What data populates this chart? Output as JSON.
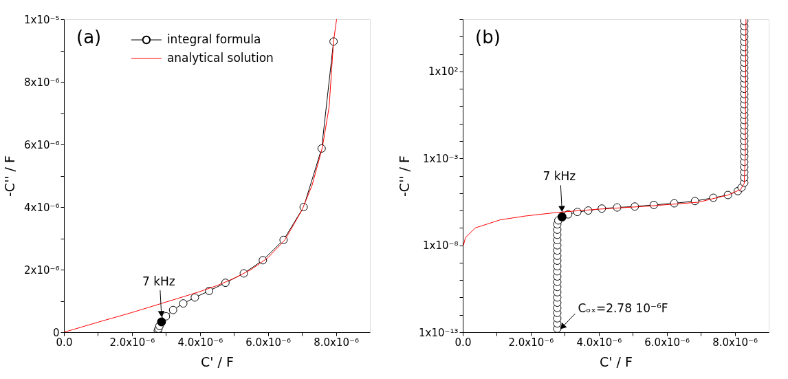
{
  "chart_data": [
    {
      "type": "line",
      "xlabel": "C' / F",
      "ylabel": "-C'' / F",
      "legend": "top",
      "grid": false,
      "marker": "circle",
      "line_style": "solid",
      "xlim": [
        0,
        9e-06
      ],
      "ylim": [
        0,
        1e-05
      ],
      "xticks": [
        {
          "value": 0,
          "label": "0.0"
        },
        {
          "value": 1e-06,
          "label": null
        },
        {
          "value": 2e-06,
          "label": "2.0x10⁻⁶"
        },
        {
          "value": 3e-06,
          "label": null
        },
        {
          "value": 4e-06,
          "label": "4.0x10⁻⁶"
        },
        {
          "value": 5e-06,
          "label": null
        },
        {
          "value": 6e-06,
          "label": "6.0x10⁻⁶"
        },
        {
          "value": 7e-06,
          "label": null
        },
        {
          "value": 8e-06,
          "label": "8.0x10⁻⁶"
        }
      ],
      "yticks": [
        0,
        {
          "value": 1e-06,
          "label": null
        },
        {
          "value": 2e-06,
          "label": "2x10⁻⁶"
        },
        {
          "value": 3e-06,
          "label": null
        },
        {
          "value": 4e-06,
          "label": "4x10⁻⁶"
        },
        {
          "value": 5e-06,
          "label": null
        },
        {
          "value": 6e-06,
          "label": "6x10⁻⁶"
        },
        {
          "value": 7e-06,
          "label": null
        },
        {
          "value": 8e-06,
          "label": "8x10⁻⁶"
        },
        {
          "value": 9e-06,
          "label": null
        },
        {
          "value": 1e-05,
          "label": "1x10⁻⁵"
        }
      ],
      "series": [
        {
          "name": "integral formula",
          "color": "#000000",
          "x": [
            2.76e-06,
            2.78e-06,
            2.81e-06,
            3e-06,
            3.21e-06,
            3.51e-06,
            3.85e-06,
            4.27e-06,
            4.75e-06,
            5.29e-06,
            5.85e-06,
            6.46e-06,
            7.05e-06,
            7.58e-06,
            7.93e-06
          ],
          "values": [
            5e-08,
            1.1e-07,
            2e-07,
            5.1e-07,
            7.1e-07,
            9.2e-07,
            1.11e-06,
            1.32e-06,
            1.58e-06,
            1.88e-06,
            2.3e-06,
            2.95e-06,
            4e-06,
            5.87e-06,
            9.29e-06
          ]
        },
        {
          "name": "analytical solution",
          "marker": "none",
          "color": "#ff0000",
          "x": [
            0,
            1e-06,
            2e-06,
            2.87e-06,
            3.5e-06,
            4e-06,
            4.5e-06,
            5e-06,
            5.5e-06,
            6e-06,
            6.5e-06,
            7e-06,
            7.3e-06,
            7.6e-06,
            7.8e-06,
            7.93e-06,
            8.02e-06
          ],
          "values": [
            0,
            3.2e-07,
            6.3e-07,
            9.2e-07,
            1.13e-06,
            1.3e-06,
            1.49e-06,
            1.72e-06,
            2e-06,
            2.38e-06,
            2.95e-06,
            3.9e-06,
            4.7e-06,
            5.9e-06,
            7.2e-06,
            9.3e-06,
            1e-05
          ]
        },
        {
          "type": "scatter",
          "color": "#000000",
          "x": [
            2.87e-06
          ],
          "values": [
            3.3e-07
          ]
        }
      ],
      "annotations": [
        "(a)",
        {
          "text": "7 kHz",
          "x": 2.87e-06,
          "y": 3.3e-07
        }
      ]
    },
    {
      "type": "line",
      "xlabel": "C' / F",
      "ylabel": "-C'' / F",
      "legend": false,
      "grid": false,
      "log": "y",
      "marker": "circle",
      "line_style": "solid",
      "xlim": [
        0,
        9e-06
      ],
      "ylim": [
        1e-13,
        100000.0
      ],
      "xticks": [
        {
          "value": 0,
          "label": "0.0"
        },
        {
          "value": 1e-06,
          "label": null
        },
        {
          "value": 2e-06,
          "label": "2.0x10⁻⁶"
        },
        {
          "value": 3e-06,
          "label": null
        },
        {
          "value": 4e-06,
          "label": "4.0x10⁻⁶"
        },
        {
          "value": 5e-06,
          "label": null
        },
        {
          "value": 6e-06,
          "label": "6.0x10⁻⁶"
        },
        {
          "value": 7e-06,
          "label": null
        },
        {
          "value": 8e-06,
          "label": "8.0x10⁻⁶"
        }
      ],
      "yticks": [
        {
          "value": 1e-13,
          "label": "1x10⁻¹³"
        },
        {
          "value": 1e-12,
          "label": null
        },
        {
          "value": 1e-11,
          "label": null
        },
        {
          "value": 1e-10,
          "label": null
        },
        {
          "value": 1e-09,
          "label": null
        },
        {
          "value": 1e-08,
          "label": "1x10⁻⁸"
        },
        {
          "value": 1e-07,
          "label": null
        },
        {
          "value": 1e-06,
          "label": null
        },
        {
          "value": 1e-05,
          "label": null
        },
        {
          "value": 0.0001,
          "label": null
        },
        {
          "value": 0.001,
          "label": "1x10⁻³"
        },
        {
          "value": 0.01,
          "label": null
        },
        {
          "value": 0.1,
          "label": null
        },
        {
          "value": 1,
          "label": null
        },
        {
          "value": 10,
          "label": null
        },
        {
          "value": 100,
          "label": "1x10²"
        },
        {
          "value": 1000,
          "label": null
        },
        {
          "value": 10000,
          "label": null
        },
        {
          "value": 100000.0,
          "label": null
        }
      ],
      "series": [
        {
          "color": "#000000",
          "x": [
            2.78e-06,
            2.78e-06,
            2.78e-06,
            2.78e-06,
            2.78e-06,
            2.78e-06,
            2.78e-06,
            2.78e-06,
            2.78e-06,
            2.78e-06,
            2.78e-06,
            2.78e-06,
            2.78e-06,
            2.78e-06,
            2.78e-06,
            2.78e-06,
            2.78e-06,
            2.78e-06,
            2.78e-06,
            2.78e-06,
            2.78e-06,
            2.81e-06,
            3.1e-06,
            3.37e-06,
            3.69e-06,
            4.09e-06,
            4.54e-06,
            5.06e-06,
            5.62e-06,
            6.22e-06,
            6.83e-06,
            7.37e-06,
            7.8e-06,
            8.09e-06,
            8.2e-06,
            8.28e-06,
            8.28e-06,
            8.28e-06,
            8.28e-06,
            8.28e-06,
            8.28e-06,
            8.28e-06,
            8.28e-06,
            8.28e-06,
            8.28e-06,
            8.28e-06,
            8.28e-06,
            8.28e-06,
            8.28e-06,
            8.28e-06,
            8.28e-06,
            8.28e-06,
            8.28e-06,
            8.28e-06,
            8.28e-06,
            8.28e-06,
            8.28e-06,
            8.28e-06,
            8.28e-06,
            8.28e-06,
            8.28e-06,
            8.28e-06,
            8.28e-06,
            8.28e-06,
            8.28e-06,
            8.28e-06,
            8.28e-06
          ],
          "values": [
            1.6e-13,
            3.2e-13,
            6.3e-13,
            1.3e-12,
            2.5e-12,
            5e-12,
            1e-11,
            2e-11,
            4e-11,
            7.9e-11,
            1.6e-10,
            3.2e-10,
            6.3e-10,
            1.3e-09,
            2.5e-09,
            5e-09,
            1e-08,
            2e-08,
            4e-08,
            7.9e-08,
            1.6e-07,
            2.7e-07,
            6e-07,
            8.3e-07,
            1e-06,
            1.3e-06,
            1.5e-06,
            1.7e-06,
            2.1e-06,
            2.6e-06,
            3.5e-06,
            5.4e-06,
            7.8e-06,
            1.3e-05,
            2.1e-05,
            4e-05,
            7.9e-05,
            0.00016,
            0.00032,
            0.00063,
            0.0013,
            0.0025,
            0.005,
            0.01,
            0.02,
            0.04,
            0.079,
            0.16,
            0.32,
            0.63,
            1.3,
            2.5,
            5.0,
            10,
            20,
            40,
            79,
            160,
            320,
            630,
            1300,
            2500,
            5000,
            10000,
            20000,
            40000,
            79000
          ]
        },
        {
          "marker": "none",
          "color": "#ff0000",
          "x": [
            2e-08,
            8e-08,
            3.7e-07,
            1.1e-06,
            1.83e-06,
            2.81e-06,
            4.01e-06,
            5.47e-06,
            6.93e-06,
            7.8e-06,
            8.17e-06,
            8.28e-06,
            8.31e-06,
            8.33e-06
          ],
          "values": [
            1e-08,
            2.8e-08,
            1e-07,
            2.9e-07,
            4.8e-07,
            7.9e-07,
            1.2e-06,
            1.8e-06,
            3e-06,
            7.8e-06,
            1.6e-05,
            3.7e-05,
            0.0018,
            100000.0
          ]
        },
        {
          "type": "scatter",
          "color": "#000000",
          "x": [
            2.92e-06
          ],
          "values": [
            4.3e-07
          ]
        }
      ],
      "annotations": [
        "(b)",
        {
          "text": "7 kHz",
          "x": 2.92e-06,
          "y": 4.3e-07
        },
        {
          "text": "Cₒₓ=2.78 10⁻⁶F",
          "x": 2.78e-06,
          "y": 1e-13
        }
      ]
    }
  ]
}
